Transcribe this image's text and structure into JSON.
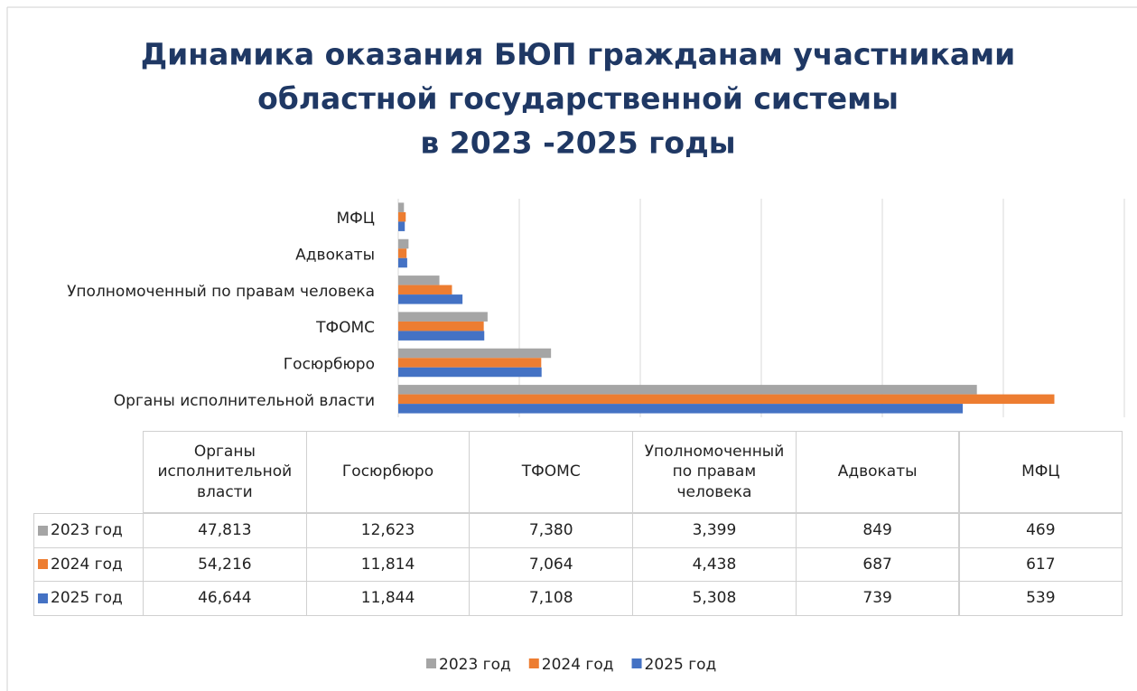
{
  "chart_data": {
    "type": "barh",
    "title": [
      "Динамика оказания БЮП гражданам участниками",
      "областной государственной системы",
      "в 2023 -2025 годы"
    ],
    "categories": [
      "Органы исполнительной власти",
      "Госюрбюро",
      "ТФОМС",
      "Уполномоченный по правам человека",
      "Адвокаты",
      "МФЦ"
    ],
    "series": [
      {
        "name": "2023 год",
        "color": "#a5a5a5",
        "values": [
          47813,
          12623,
          7380,
          3399,
          849,
          469
        ],
        "value_labels": [
          "47,813",
          "12,623",
          "7,380",
          "3,399",
          "849",
          "469"
        ]
      },
      {
        "name": "2024 год",
        "color": "#ed7d31",
        "values": [
          54216,
          11814,
          7064,
          4438,
          687,
          617
        ],
        "value_labels": [
          "54,216",
          "11,814",
          "7,064",
          "4,438",
          "687",
          "617"
        ]
      },
      {
        "name": "2025 год",
        "color": "#4472c4",
        "values": [
          46644,
          11844,
          7108,
          5308,
          739,
          539
        ],
        "value_labels": [
          "46,644",
          "11,844",
          "7,108",
          "5,308",
          "739",
          "539"
        ]
      }
    ],
    "xlim": [
      0,
      60000
    ],
    "xticks": [
      0,
      10000,
      20000,
      30000,
      40000,
      50000,
      60000
    ],
    "grid": true,
    "legend": "bottom"
  }
}
